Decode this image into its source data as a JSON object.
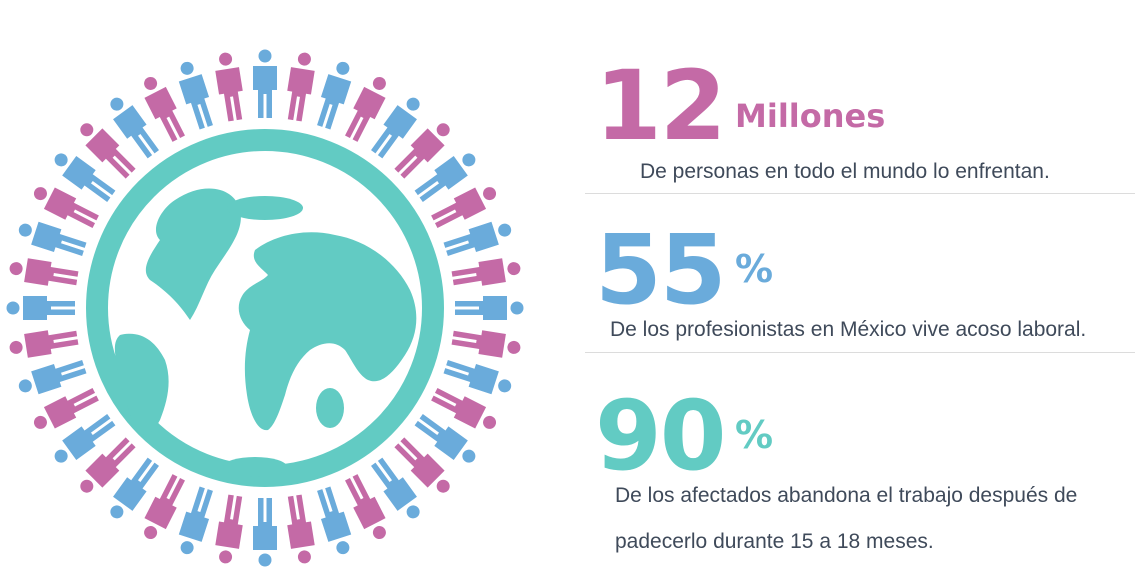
{
  "colors": {
    "pink": "#c46aa6",
    "blue": "#6aabdb",
    "teal": "#62cbc3",
    "text": "#3f4a5a"
  },
  "figures": [
    "blue",
    "pink",
    "blue",
    "pink",
    "blue",
    "pink",
    "blue",
    "pink",
    "blue",
    "pink",
    "blue",
    "pink",
    "blue",
    "pink",
    "blue",
    "pink",
    "blue",
    "pink",
    "blue",
    "pink",
    "blue",
    "pink",
    "blue",
    "pink",
    "blue",
    "pink",
    "blue",
    "pink",
    "blue",
    "pink",
    "blue",
    "pink",
    "blue",
    "pink",
    "blue",
    "pink",
    "blue",
    "pink",
    "blue",
    "pink"
  ],
  "stats": [
    {
      "number": "12",
      "unit": "Millones",
      "lines": [
        "De personas en todo el mundo lo enfrentan."
      ]
    },
    {
      "number": "55",
      "unit": "%",
      "lines": [
        "De los profesionistas en México vive acoso laboral."
      ]
    },
    {
      "number": "90",
      "unit": "%",
      "lines": [
        "De los afectados abandona el trabajo después de",
        "padecerlo durante 15 a 18 meses."
      ]
    }
  ]
}
